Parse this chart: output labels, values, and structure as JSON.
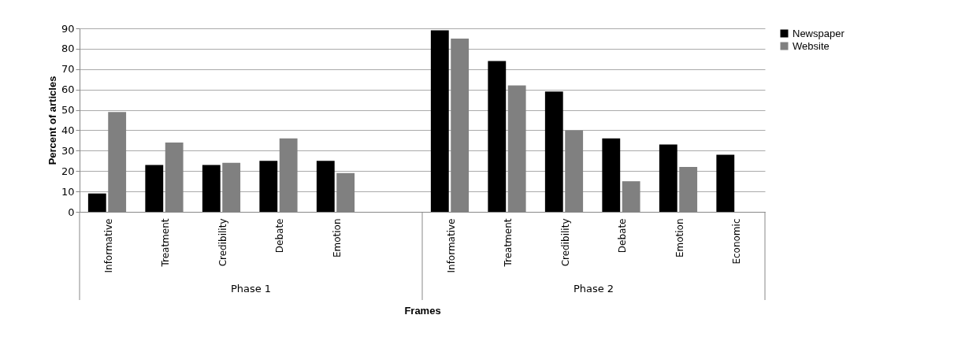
{
  "chart_data": {
    "type": "bar",
    "xlabel": "Frames",
    "ylabel": "Percent of articles",
    "categories": [
      "Informative",
      "Treatment",
      "Credibility",
      "Debate",
      "Emotion",
      null,
      "Informative",
      "Treatment",
      "Credibility",
      "Debate",
      "Emotion",
      "Economic"
    ],
    "series": [
      {
        "name": "Newspaper",
        "color": "#000000",
        "values": [
          9,
          23,
          23,
          25,
          25,
          null,
          89,
          74,
          59,
          36,
          33,
          28
        ]
      },
      {
        "name": "Website",
        "color": "#808080",
        "values": [
          49,
          34,
          24,
          36,
          19,
          null,
          85,
          62,
          40,
          15,
          22,
          0
        ]
      }
    ],
    "annotations": [
      "Phase 1",
      "Phase 2"
    ],
    "ylim": [
      0,
      90
    ],
    "yticks": [
      0,
      10,
      20,
      30,
      40,
      50,
      60,
      70,
      80,
      90
    ],
    "grid": "y",
    "legend": "right"
  }
}
